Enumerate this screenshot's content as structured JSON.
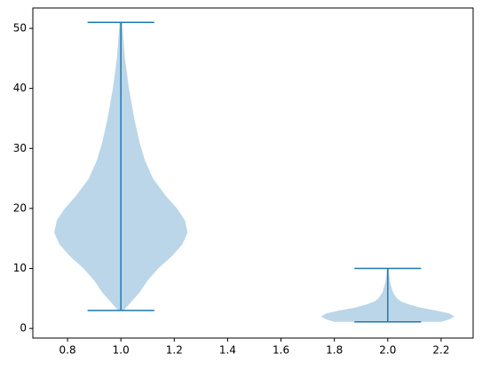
{
  "chart_data": {
    "type": "violin",
    "xlim": [
      0.67,
      2.32
    ],
    "xticks": [
      0.8,
      {
        "value": 1,
        "label": "1.0"
      },
      1.2,
      1.4,
      1.6,
      1.8,
      {
        "value": 2,
        "label": "2.0"
      },
      2.2
    ],
    "ylim": [
      -1.6,
      53.4
    ],
    "yticks": [
      0,
      10,
      20,
      30,
      40,
      50
    ],
    "fill_color": "#1f77b4",
    "line_color": "#1f77b4",
    "violins": [
      {
        "position": 1,
        "min": 3,
        "max": 51,
        "density": {
          "y": [
            3,
            4,
            5,
            6,
            8,
            10,
            12,
            14,
            16,
            18,
            20,
            22,
            25,
            28,
            31,
            35,
            40,
            45,
            51
          ],
          "width": [
            0.01,
            0.03,
            0.05,
            0.07,
            0.1,
            0.14,
            0.19,
            0.23,
            0.25,
            0.24,
            0.21,
            0.17,
            0.12,
            0.09,
            0.07,
            0.05,
            0.03,
            0.015,
            0.005
          ]
        }
      },
      {
        "position": 2,
        "min": 1.1,
        "max": 10,
        "density": {
          "y": [
            1.1,
            1.5,
            2,
            2.5,
            3,
            3.5,
            4,
            4.5,
            5,
            6,
            7,
            8,
            9,
            10
          ],
          "width": [
            0.2,
            0.23,
            0.25,
            0.23,
            0.18,
            0.12,
            0.08,
            0.05,
            0.035,
            0.02,
            0.013,
            0.008,
            0.005,
            0.003
          ]
        }
      }
    ]
  }
}
